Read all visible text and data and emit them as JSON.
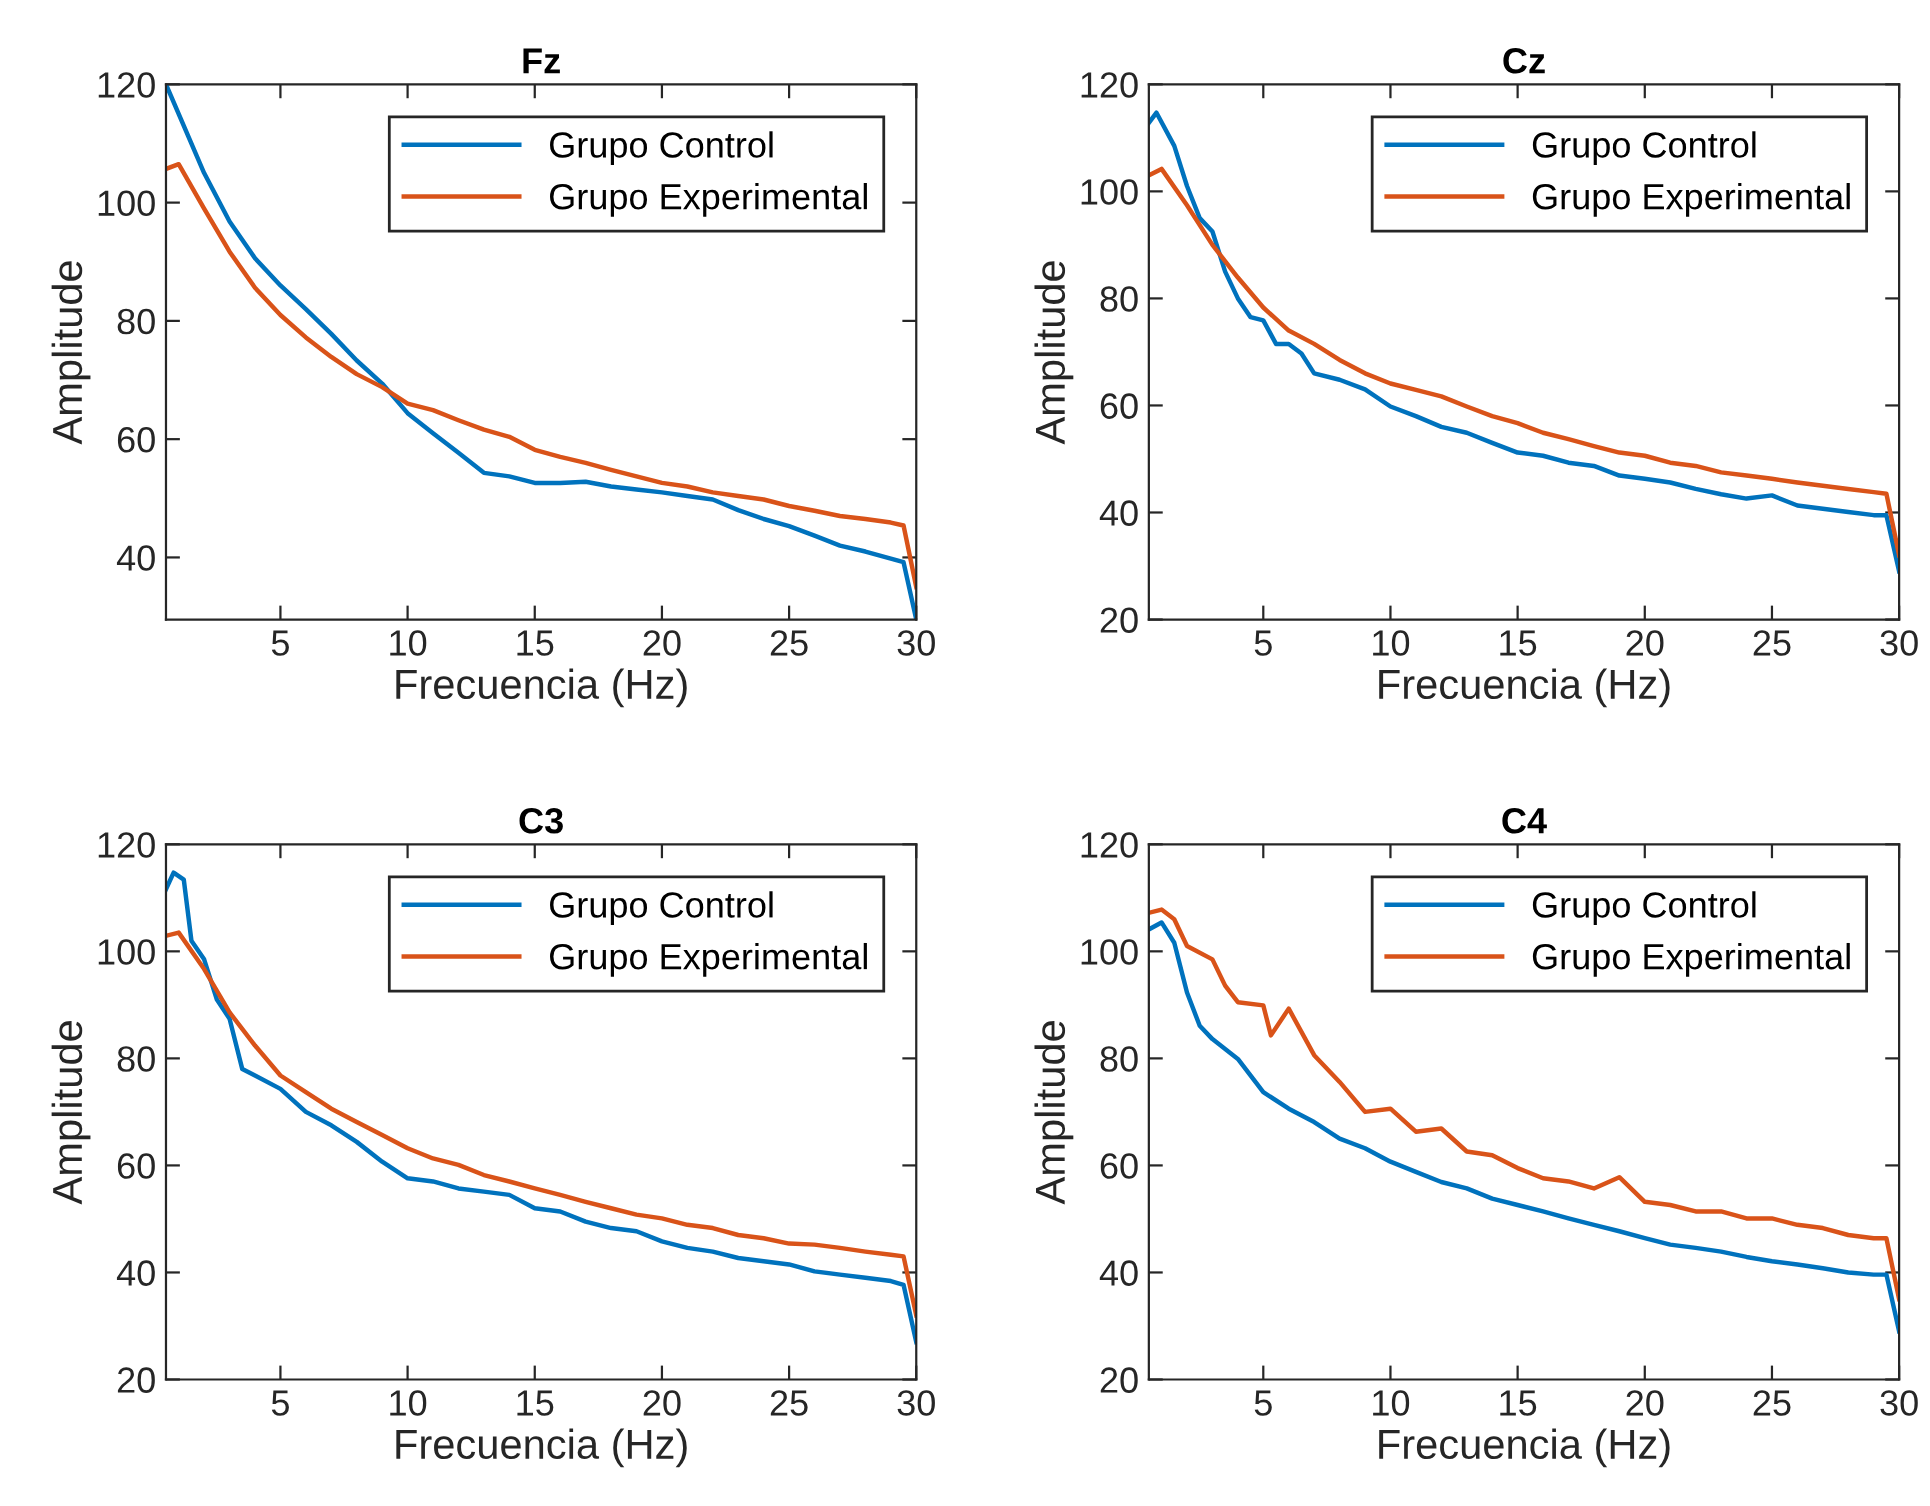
{
  "chart_data": [
    {
      "type": "line",
      "title": "Fz",
      "xlabel": "Frecuencia (Hz)",
      "ylabel": "Amplitude",
      "xlim": [
        0.5,
        30
      ],
      "ylim": [
        29.5,
        120
      ],
      "xticks": [
        5,
        10,
        15,
        20,
        25,
        30
      ],
      "yticks": [
        40,
        60,
        80,
        100,
        120
      ],
      "legend": "top right",
      "grid": false,
      "series": [
        {
          "name": "Grupo Control",
          "color": "#0072bd",
          "x": [
            0.5,
            2,
            3,
            4,
            5,
            6,
            7,
            8,
            9,
            10,
            11,
            12,
            13,
            14,
            15,
            16,
            17,
            18,
            19,
            20,
            21,
            22,
            23,
            24,
            25,
            26,
            27,
            28,
            29,
            29.5,
            30
          ],
          "values": [
            120,
            105,
            96.8,
            90.6,
            86,
            82,
            77.8,
            73.3,
            69.4,
            64.4,
            61,
            57.7,
            54.3,
            53.7,
            52.6,
            52.6,
            52.8,
            52,
            51.5,
            51,
            50.4,
            49.8,
            48,
            46.5,
            45.3,
            43.7,
            42,
            41,
            39.8,
            39.2,
            29.5
          ]
        },
        {
          "name": "Grupo Experimental",
          "color": "#d95319",
          "x": [
            0.5,
            1,
            2,
            3,
            4,
            5,
            6,
            7,
            8,
            9,
            10,
            11,
            12,
            13,
            14,
            15,
            16,
            17,
            18,
            19,
            20,
            21,
            22,
            23,
            24,
            25,
            26,
            27,
            28,
            29,
            29.5,
            30
          ],
          "values": [
            105.7,
            106.5,
            99,
            91.7,
            85.6,
            81,
            77.2,
            73.9,
            71,
            68.8,
            66,
            64.9,
            63.2,
            61.6,
            60.4,
            58.2,
            57,
            56,
            54.8,
            53.7,
            52.6,
            52,
            51,
            50.4,
            49.8,
            48.7,
            47.9,
            47,
            46.5,
            45.9,
            45.4,
            35
          ]
        }
      ]
    },
    {
      "type": "line",
      "title": "Cz",
      "xlabel": "Frecuencia (Hz)",
      "ylabel": "Amplitude",
      "xlim": [
        0.5,
        30
      ],
      "ylim": [
        20,
        120
      ],
      "xticks": [
        5,
        10,
        15,
        20,
        25,
        30
      ],
      "yticks": [
        20,
        40,
        60,
        80,
        100,
        120
      ],
      "legend": "top right",
      "grid": false,
      "series": [
        {
          "name": "Grupo Control",
          "color": "#0072bd",
          "x": [
            0.5,
            0.8,
            1.5,
            2,
            2.5,
            3,
            3.5,
            4,
            4.5,
            5,
            5.5,
            6,
            6.5,
            7,
            8,
            9,
            10,
            11,
            12,
            13,
            14,
            15,
            16,
            17,
            18,
            19,
            20,
            21,
            22,
            23,
            24,
            25,
            26,
            27,
            28,
            29,
            29.5,
            30
          ],
          "values": [
            112.8,
            114.7,
            108.5,
            101,
            95,
            92.5,
            85,
            80,
            76.5,
            75.9,
            71.5,
            71.5,
            69.7,
            66,
            64.8,
            63,
            59.8,
            58,
            56,
            54.9,
            53,
            51.2,
            50.6,
            49.3,
            48.7,
            46.9,
            46.3,
            45.6,
            44.4,
            43.4,
            42.6,
            43.2,
            41.3,
            40.7,
            40.1,
            39.5,
            39.5,
            29
          ]
        },
        {
          "name": "Grupo Experimental",
          "color": "#d95319",
          "x": [
            0.5,
            1,
            2,
            3,
            4,
            5,
            6,
            7,
            8,
            9,
            10,
            11,
            12,
            13,
            14,
            15,
            16,
            17,
            18,
            19,
            20,
            21,
            22,
            23,
            24,
            25,
            26,
            27,
            28,
            29,
            29.5,
            30
          ],
          "values": [
            103,
            104.2,
            97.4,
            90,
            83.9,
            78.3,
            74,
            71.5,
            68.5,
            66,
            64.1,
            62.9,
            61.7,
            59.8,
            58,
            56.7,
            54.9,
            53.7,
            52.4,
            51.2,
            50.6,
            49.3,
            48.7,
            47.5,
            46.9,
            46.3,
            45.6,
            45,
            44.4,
            43.8,
            43.5,
            32
          ]
        }
      ]
    },
    {
      "type": "line",
      "title": "C3",
      "xlabel": "Frecuencia (Hz)",
      "ylabel": "Amplitude",
      "xlim": [
        0.5,
        30
      ],
      "ylim": [
        20,
        120
      ],
      "xticks": [
        5,
        10,
        15,
        20,
        25,
        30
      ],
      "yticks": [
        20,
        40,
        60,
        80,
        100,
        120
      ],
      "legend": "top right",
      "grid": false,
      "series": [
        {
          "name": "Grupo Control",
          "color": "#0072bd",
          "x": [
            0.5,
            0.8,
            1.2,
            1.5,
            2,
            2.5,
            3,
            3.5,
            4,
            5,
            6,
            7,
            8,
            9,
            10,
            11,
            12,
            13,
            14,
            15,
            16,
            17,
            18,
            19,
            20,
            21,
            22,
            23,
            24,
            25,
            26,
            27,
            28,
            29,
            29.5,
            30
          ],
          "values": [
            111.6,
            114.7,
            113.4,
            102,
            98.5,
            91,
            87.4,
            78,
            76.8,
            74.3,
            70,
            67.5,
            64.4,
            60.7,
            57.6,
            57,
            55.7,
            55.1,
            54.5,
            52,
            51.4,
            49.5,
            48.3,
            47.7,
            45.8,
            44.6,
            43.9,
            42.7,
            42.1,
            41.5,
            40.2,
            39.6,
            39,
            38.4,
            37.7,
            27
          ]
        },
        {
          "name": "Grupo Experimental",
          "color": "#d95319",
          "x": [
            0.5,
            1,
            2,
            3,
            4,
            5,
            6,
            7,
            8,
            9,
            10,
            11,
            12,
            13,
            14,
            15,
            16,
            17,
            18,
            19,
            20,
            21,
            22,
            23,
            24,
            25,
            26,
            27,
            28,
            29,
            29.5,
            30
          ],
          "values": [
            102.9,
            103.5,
            96.7,
            88.6,
            82.4,
            76.8,
            73.7,
            70.6,
            68.1,
            65.7,
            63.2,
            61.3,
            60.1,
            58.2,
            57,
            55.7,
            54.5,
            53.2,
            52,
            50.8,
            50.1,
            48.9,
            48.3,
            47,
            46.4,
            45.4,
            45.2,
            44.6,
            43.9,
            43.3,
            43,
            32
          ]
        }
      ]
    },
    {
      "type": "line",
      "title": "C4",
      "xlabel": "Frecuencia (Hz)",
      "ylabel": "Amplitude",
      "xlim": [
        0.5,
        30
      ],
      "ylim": [
        20,
        120
      ],
      "xticks": [
        5,
        10,
        15,
        20,
        25,
        30
      ],
      "yticks": [
        20,
        40,
        60,
        80,
        100,
        120
      ],
      "legend": "top right",
      "grid": false,
      "series": [
        {
          "name": "Grupo Control",
          "color": "#0072bd",
          "x": [
            0.5,
            1,
            1.5,
            2,
            2.5,
            3,
            4,
            5,
            6,
            7,
            8,
            9,
            10,
            11,
            12,
            13,
            14,
            15,
            16,
            17,
            18,
            19,
            20,
            21,
            22,
            23,
            24,
            25,
            26,
            27,
            28,
            29,
            29.5,
            30
          ],
          "values": [
            104.1,
            105.4,
            101.6,
            92.3,
            86.1,
            83.6,
            79.9,
            73.7,
            70.6,
            68.1,
            65,
            63.2,
            60.7,
            58.8,
            56.9,
            55.7,
            53.8,
            52.6,
            51.4,
            50.1,
            48.9,
            47.7,
            46.4,
            45.2,
            44.6,
            43.9,
            42.9,
            42.1,
            41.5,
            40.8,
            40,
            39.6,
            39.6,
            29
          ]
        },
        {
          "name": "Grupo Experimental",
          "color": "#d95319",
          "x": [
            0.5,
            1,
            1.5,
            2,
            3,
            3.5,
            4,
            5,
            5.3,
            6,
            7,
            8,
            9,
            10,
            11,
            12,
            13,
            14,
            15,
            16,
            17,
            18,
            19,
            20,
            21,
            22,
            23,
            24,
            25,
            26,
            27,
            28,
            29,
            29.5,
            30
          ],
          "values": [
            107.2,
            107.8,
            106,
            101,
            98.5,
            93.6,
            90.5,
            89.9,
            84.3,
            89.3,
            80.6,
            75.6,
            70,
            70.6,
            66.3,
            66.9,
            62.6,
            61.9,
            59.5,
            57.6,
            57,
            55.7,
            57.8,
            53.2,
            52.6,
            51.4,
            51.4,
            50.1,
            50.1,
            48.9,
            48.3,
            47,
            46.4,
            46.4,
            35
          ]
        }
      ]
    }
  ]
}
